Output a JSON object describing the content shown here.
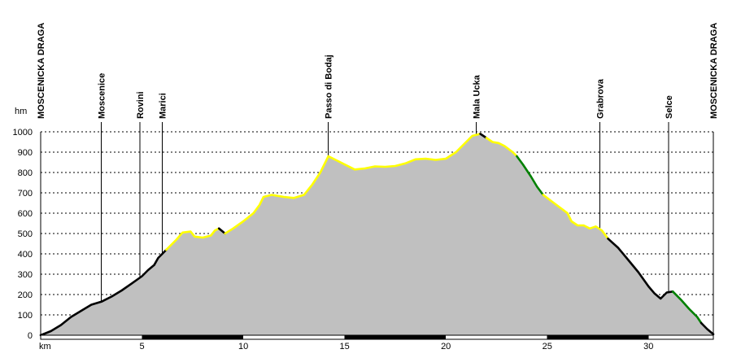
{
  "chart_data": {
    "type": "area",
    "ylabel": "hm",
    "xlabel": "km",
    "xlim": [
      0,
      33.2
    ],
    "ylim": [
      0,
      1000
    ],
    "yticks": [
      0,
      100,
      200,
      300,
      400,
      500,
      600,
      700,
      800,
      900,
      1000
    ],
    "xticks": [
      5,
      10,
      15,
      20,
      25,
      30
    ],
    "grid": "horizontal dashed",
    "fill_color": "#c0c0c0",
    "segment_colors": {
      "black": "#000000",
      "yellow": "#ffff00",
      "green": "#008000"
    },
    "waypoints": [
      {
        "name": "MOSCENICKA DRAGA",
        "km": 0
      },
      {
        "name": "Moscenice",
        "km": 3.0
      },
      {
        "name": "Rovini",
        "km": 4.9
      },
      {
        "name": "Marici",
        "km": 6.0
      },
      {
        "name": "Passo di Bodaj",
        "km": 14.2
      },
      {
        "name": "Mala Ucka",
        "km": 21.5
      },
      {
        "name": "Grabrova",
        "km": 27.6
      },
      {
        "name": "Selce",
        "km": 31.0
      },
      {
        "name": "MOSCENICKA DRAGA",
        "km": 33.2
      }
    ],
    "series": [
      {
        "color": "black",
        "points": [
          [
            0,
            0
          ],
          [
            0.5,
            20
          ],
          [
            1,
            50
          ],
          [
            1.5,
            90
          ],
          [
            2,
            120
          ],
          [
            2.5,
            150
          ],
          [
            3,
            165
          ],
          [
            3.5,
            190
          ],
          [
            4,
            220
          ],
          [
            4.5,
            255
          ],
          [
            5,
            290
          ],
          [
            5.3,
            320
          ],
          [
            5.6,
            345
          ],
          [
            5.8,
            380
          ],
          [
            6.0,
            400
          ],
          [
            6.2,
            420
          ]
        ]
      },
      {
        "color": "yellow",
        "points": [
          [
            6.2,
            420
          ],
          [
            6.7,
            470
          ],
          [
            7.0,
            505
          ],
          [
            7.4,
            510
          ],
          [
            7.6,
            485
          ],
          [
            8.0,
            480
          ],
          [
            8.4,
            490
          ],
          [
            8.6,
            515
          ],
          [
            8.8,
            525
          ]
        ]
      },
      {
        "color": "black",
        "points": [
          [
            8.8,
            525
          ],
          [
            9.1,
            500
          ]
        ]
      },
      {
        "color": "yellow",
        "points": [
          [
            9.1,
            500
          ],
          [
            9.5,
            525
          ],
          [
            10,
            560
          ],
          [
            10.5,
            600
          ],
          [
            10.8,
            640
          ],
          [
            11.0,
            680
          ],
          [
            11.4,
            690
          ],
          [
            12.0,
            680
          ],
          [
            12.5,
            675
          ],
          [
            13.0,
            690
          ],
          [
            13.4,
            740
          ],
          [
            13.8,
            800
          ],
          [
            14.2,
            880
          ],
          [
            14.6,
            860
          ],
          [
            15.0,
            840
          ],
          [
            15.5,
            815
          ],
          [
            16.0,
            820
          ],
          [
            16.5,
            830
          ],
          [
            17.0,
            828
          ],
          [
            17.5,
            832
          ],
          [
            18.0,
            845
          ],
          [
            18.5,
            865
          ],
          [
            19.0,
            868
          ],
          [
            19.5,
            862
          ],
          [
            20.0,
            868
          ],
          [
            20.5,
            900
          ],
          [
            21.0,
            950
          ],
          [
            21.3,
            980
          ],
          [
            21.7,
            990
          ]
        ]
      },
      {
        "color": "black",
        "points": [
          [
            21.7,
            990
          ],
          [
            22.0,
            970
          ]
        ]
      },
      {
        "color": "yellow",
        "points": [
          [
            22.0,
            970
          ],
          [
            22.3,
            950
          ],
          [
            22.6,
            945
          ],
          [
            22.9,
            930
          ],
          [
            23.3,
            900
          ],
          [
            23.5,
            880
          ]
        ]
      },
      {
        "color": "green",
        "points": [
          [
            23.5,
            880
          ],
          [
            23.8,
            840
          ],
          [
            24.2,
            780
          ],
          [
            24.5,
            730
          ],
          [
            24.8,
            690
          ]
        ]
      },
      {
        "color": "yellow",
        "points": [
          [
            24.8,
            690
          ],
          [
            25.2,
            660
          ],
          [
            25.6,
            630
          ],
          [
            26.0,
            600
          ],
          [
            26.2,
            560
          ],
          [
            26.5,
            540
          ],
          [
            26.8,
            540
          ],
          [
            27.1,
            525
          ],
          [
            27.4,
            535
          ],
          [
            27.7,
            515
          ],
          [
            28.0,
            475
          ]
        ]
      },
      {
        "color": "black",
        "points": [
          [
            28.0,
            475
          ],
          [
            28.5,
            430
          ],
          [
            29,
            370
          ],
          [
            29.5,
            310
          ],
          [
            30.0,
            240
          ],
          [
            30.3,
            205
          ],
          [
            30.6,
            180
          ],
          [
            30.9,
            210
          ],
          [
            31.2,
            215
          ]
        ]
      },
      {
        "color": "green",
        "points": [
          [
            31.2,
            215
          ],
          [
            31.6,
            175
          ],
          [
            32.0,
            130
          ],
          [
            32.4,
            90
          ],
          [
            32.6,
            60
          ]
        ]
      },
      {
        "color": "black",
        "points": [
          [
            32.6,
            60
          ],
          [
            32.9,
            30
          ],
          [
            33.2,
            5
          ]
        ]
      }
    ]
  }
}
